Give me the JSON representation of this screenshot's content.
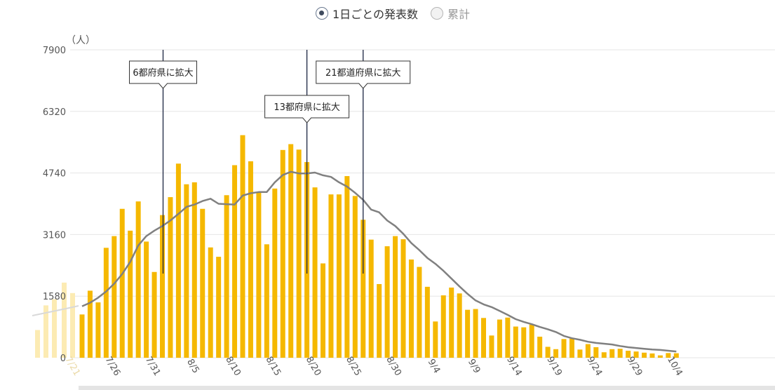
{
  "controls": {
    "daily_label": "1日ごとの発表数",
    "cumulative_label": "累計",
    "selected": "daily"
  },
  "colors": {
    "bar": "#f5b800",
    "bar_faded": "#fcebb3",
    "line": "#808080",
    "grid": "#e6e6e6",
    "annotation_line": "#1a2340"
  },
  "chart_data": {
    "type": "bar",
    "ylabel": "（人）",
    "ylim": [
      0,
      7900
    ],
    "yticks": [
      "0",
      "1580",
      "3160",
      "4740",
      "6320",
      "7900"
    ],
    "x_start": "7/21",
    "xticks": [
      "7/21",
      "7/26",
      "7/31",
      "8/5",
      "8/10",
      "8/15",
      "8/20",
      "8/25",
      "8/30",
      "9/4",
      "9/9",
      "9/14",
      "9/19",
      "9/24",
      "9/29",
      "10/4"
    ],
    "series": [
      {
        "kind": "bar",
        "values": [
          1110,
          1720,
          1420,
          2820,
          3120,
          3820,
          3260,
          4010,
          2980,
          2200,
          3660,
          4120,
          4980,
          4450,
          4500,
          3820,
          2830,
          2590,
          4170,
          4940,
          5710,
          5040,
          4230,
          2910,
          4340,
          5330,
          5480,
          5340,
          5020,
          4370,
          2420,
          4190,
          4190,
          4660,
          4150,
          3540,
          3030,
          1890,
          2860,
          3120,
          3040,
          2520,
          2330,
          1820,
          930,
          1600,
          1800,
          1650,
          1230,
          1250,
          1020,
          570,
          980,
          1030,
          800,
          780,
          850,
          540,
          280,
          220,
          480,
          490,
          210,
          350,
          270,
          140,
          220,
          230,
          180,
          160,
          130,
          110,
          60,
          120,
          115
        ]
      },
      {
        "kind": "line",
        "values": [
          1320,
          1410,
          1540,
          1700,
          1900,
          2150,
          2460,
          2880,
          3120,
          3260,
          3380,
          3520,
          3690,
          3870,
          3930,
          4020,
          4080,
          3950,
          3940,
          3930,
          4160,
          4220,
          4250,
          4250,
          4500,
          4690,
          4770,
          4730,
          4730,
          4750,
          4680,
          4640,
          4500,
          4390,
          4230,
          4050,
          3800,
          3730,
          3520,
          3380,
          3180,
          2940,
          2760,
          2560,
          2410,
          2230,
          2030,
          1830,
          1640,
          1470,
          1370,
          1300,
          1200,
          1100,
          990,
          920,
          860,
          790,
          730,
          660,
          560,
          500,
          460,
          410,
          380,
          360,
          340,
          300,
          270,
          250,
          230,
          210,
          200,
          180,
          160
        ]
      }
    ],
    "annotations": [
      {
        "label": "6都府県に拡大",
        "date": "8/2"
      },
      {
        "label": "13都府県に拡大",
        "date": "8/20"
      },
      {
        "label": "21都道府県に拡大",
        "date": "8/27"
      }
    ]
  }
}
